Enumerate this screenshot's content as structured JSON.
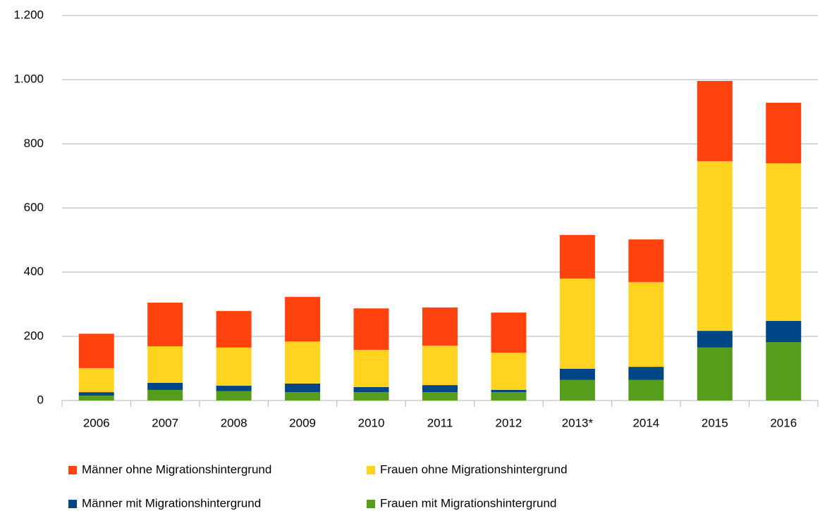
{
  "chart_data": {
    "type": "stacked_bar",
    "categories": [
      "2006",
      "2007",
      "2008",
      "2009",
      "2010",
      "2011",
      "2012",
      "2013*",
      "2014",
      "2015",
      "2016"
    ],
    "series": [
      {
        "name": "Männer ohne Migrationshintergrund",
        "color": "#ff420e",
        "values": [
          107,
          136,
          114,
          139,
          129,
          119,
          125,
          136,
          133,
          250,
          189
        ]
      },
      {
        "name": "Frauen ohne Migrationshintergrund",
        "color": "#ffd320",
        "values": [
          75,
          114,
          119,
          131,
          116,
          123,
          116,
          281,
          264,
          529,
          491
        ]
      },
      {
        "name": "Männer mit Migrationshintergrund",
        "color": "#004586",
        "values": [
          11,
          22,
          17,
          27,
          16,
          22,
          7,
          35,
          41,
          52,
          66
        ]
      },
      {
        "name": "Frauen mit Migrationshintergrund",
        "color": "#579d1c",
        "values": [
          15,
          33,
          29,
          26,
          26,
          26,
          26,
          64,
          64,
          165,
          182
        ]
      }
    ],
    "ylim": [
      0,
      1200
    ],
    "yticks": [
      0,
      200,
      400,
      600,
      800,
      {
        "value": 1000,
        "label": "1.000"
      },
      {
        "value": 1200,
        "label": "1.200"
      }
    ],
    "grid": true
  }
}
